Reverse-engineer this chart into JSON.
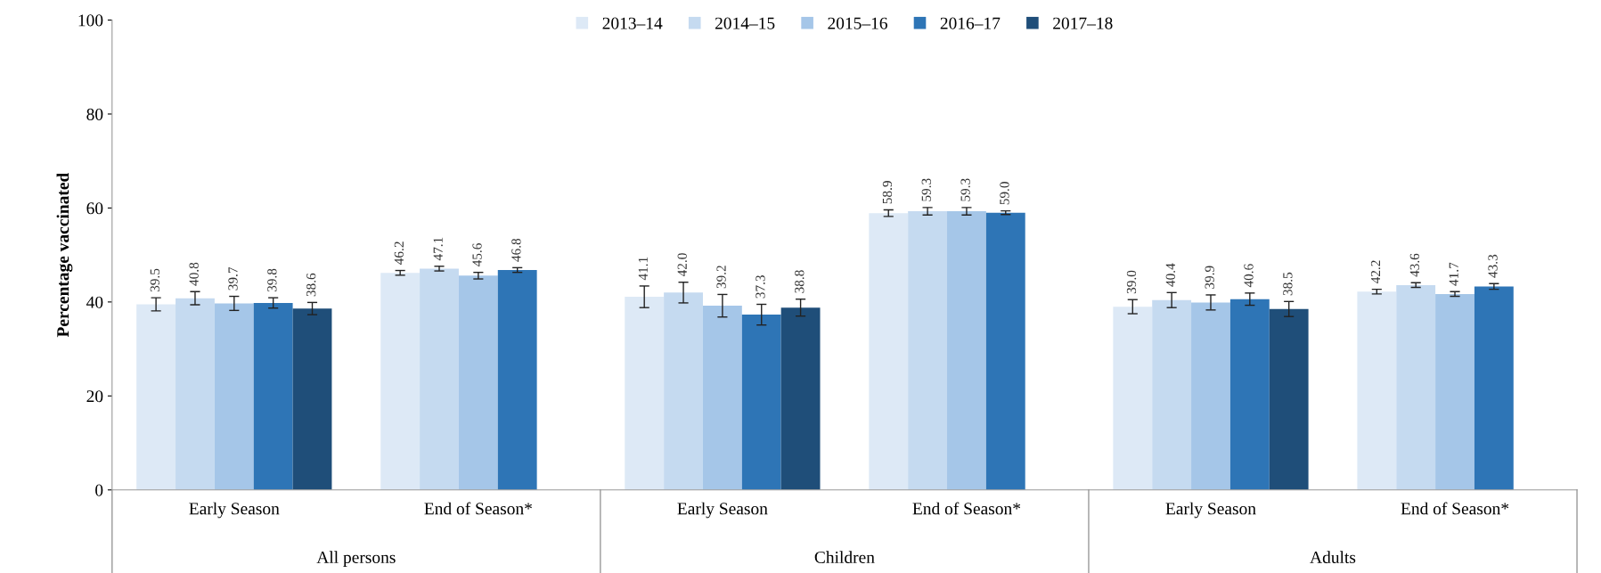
{
  "chart_data": {
    "type": "bar",
    "ylabel": "Percentage vaccinated",
    "categories": [
      "Early Season",
      "End of Season*",
      "Early Season",
      "End of Season*",
      "Early Season",
      "End of Season*"
    ],
    "annotations": [
      "All persons",
      "Children",
      "Adults"
    ],
    "series": [
      {
        "name": "2013–14",
        "color": "#dde9f6",
        "values": [
          39.5,
          46.2,
          41.1,
          58.9,
          39.0,
          42.2
        ],
        "value_labels": [
          "39.5",
          "46.2",
          "41.1",
          "58.9",
          "39.0",
          "42.2"
        ],
        "errors": [
          1.4,
          0.5,
          2.3,
          0.7,
          1.5,
          0.5
        ]
      },
      {
        "name": "2014–15",
        "color": "#c5daf0",
        "values": [
          40.8,
          47.1,
          42.0,
          59.3,
          40.4,
          43.6
        ],
        "value_labels": [
          "40.8",
          "47.1",
          "42.0",
          "59.3",
          "40.4",
          "43.6"
        ],
        "errors": [
          1.4,
          0.5,
          2.2,
          0.8,
          1.6,
          0.5
        ]
      },
      {
        "name": "2015–16",
        "color": "#a5c6e8",
        "values": [
          39.7,
          45.6,
          39.2,
          59.3,
          39.9,
          41.7
        ],
        "value_labels": [
          "39.7",
          "45.6",
          "39.2",
          "59.3",
          "39.9",
          "41.7"
        ],
        "errors": [
          1.5,
          0.7,
          2.4,
          0.8,
          1.6,
          0.5
        ]
      },
      {
        "name": "2016–17",
        "color": "#2e75b6",
        "values": [
          39.8,
          46.8,
          37.3,
          59.0,
          40.6,
          43.3
        ],
        "value_labels": [
          "39.8",
          "46.8",
          "37.3",
          "59.0",
          "40.6",
          "43.3"
        ],
        "errors": [
          1.1,
          0.5,
          2.2,
          0.4,
          1.3,
          0.6
        ]
      },
      {
        "name": "2017–18",
        "color": "#1f4e79",
        "values": [
          38.6,
          null,
          38.8,
          null,
          38.5,
          null
        ],
        "value_labels": [
          "38.6",
          null,
          "38.8",
          null,
          "38.5",
          null
        ],
        "errors": [
          1.3,
          null,
          1.8,
          null,
          1.6,
          null
        ]
      }
    ],
    "ylim": [
      0,
      100
    ],
    "yticks": [
      0,
      20,
      40,
      60,
      80,
      100
    ],
    "grid": false,
    "legend": "top"
  }
}
